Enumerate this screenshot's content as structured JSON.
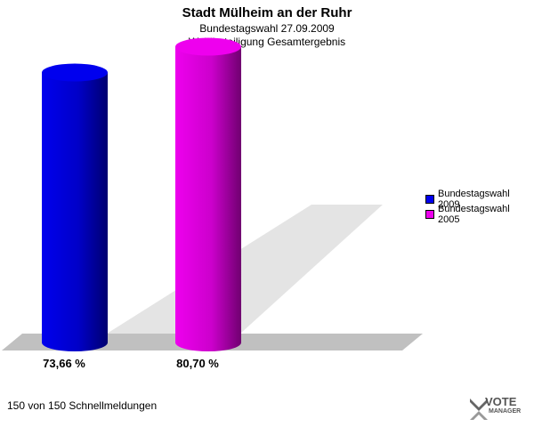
{
  "chart_data": {
    "type": "bar",
    "title": "Stadt Mülheim an der Ruhr",
    "subtitle_line1": "Bundestagswahl 27.09.2009",
    "subtitle_line2": "Wahlbeteiligung Gesamtergebnis",
    "series": [
      {
        "name": "Bundestagswahl 2009",
        "value": 73.66,
        "label": "73,66 %",
        "color": "#0000ee"
      },
      {
        "name": "Bundestagswahl 2005",
        "value": 80.7,
        "label": "80,70 %",
        "color": "#ee00ee"
      }
    ],
    "ylim": [
      0,
      100
    ],
    "legend_position": "right"
  },
  "footer": "150 von 150 Schnellmeldungen",
  "logo": {
    "name": "VOTE",
    "sub": "MANAGER"
  }
}
